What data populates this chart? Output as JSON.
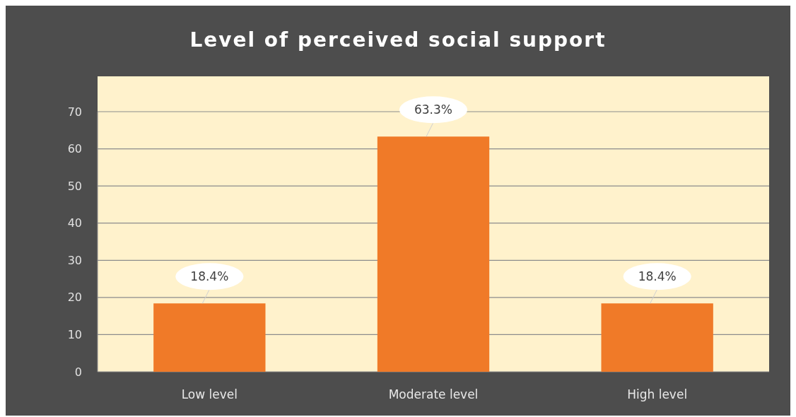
{
  "chart_data": {
    "type": "bar",
    "title": "Level of perceived social support",
    "categories": [
      "Low level",
      "Moderate level",
      "High level"
    ],
    "values": [
      18.4,
      63.3,
      18.4
    ],
    "value_labels": [
      "18.4%",
      "63.3%",
      "18.4%"
    ],
    "color": "#f07a28",
    "ylim": [
      0,
      70
    ],
    "yticks": [
      0,
      10,
      20,
      30,
      40,
      50,
      60,
      70
    ],
    "grid": "y"
  }
}
